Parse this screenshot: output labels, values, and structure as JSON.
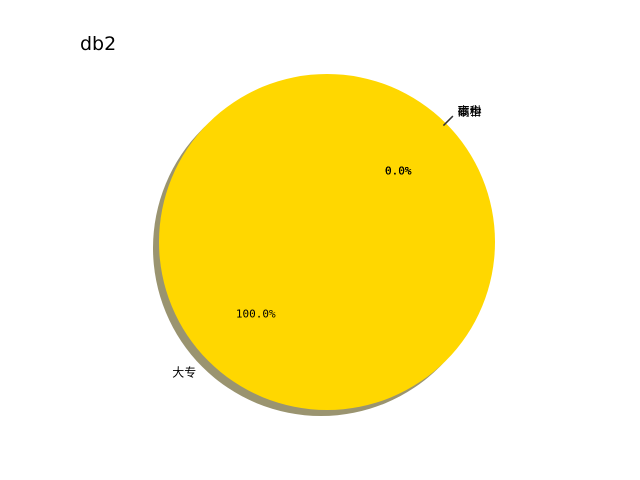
{
  "chart_data": {
    "type": "pie",
    "title": "db2",
    "labels": [
      "大专",
      "硕士",
      "本科",
      "高中"
    ],
    "values": [
      100.0,
      0.0,
      0.0,
      0.0
    ],
    "pct_labels": [
      "100.0%",
      "0.0%",
      "0.0%",
      "0.0%"
    ],
    "colors": [
      "#ffd700",
      "#c0c0c0",
      "#87cefa",
      "#ff7f50"
    ],
    "shadow": true,
    "legend": false
  }
}
